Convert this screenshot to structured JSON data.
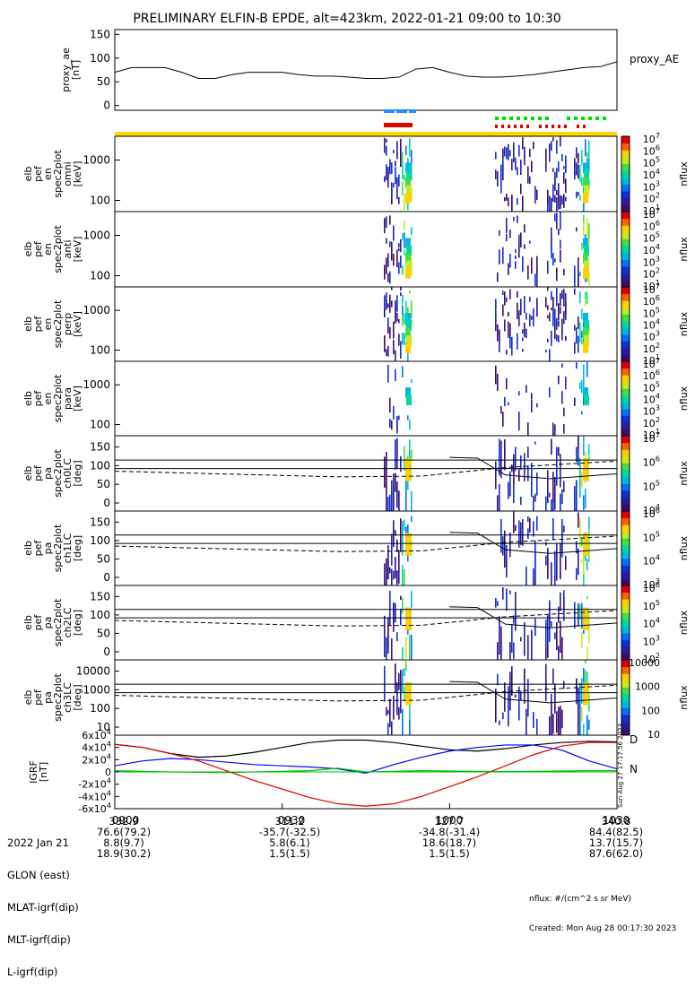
{
  "title": "PRELIMINARY ELFIN-B EPDE, alt=423km, 2022-01-21 09:00 to 10:30",
  "chart_data": [
    {
      "type": "line",
      "panel": "proxy_ae",
      "ylabel_lines": [
        "proxy_ae",
        "[nT]"
      ],
      "legend": "proxy_AE",
      "yticks": [
        "0",
        "50",
        "100",
        "150"
      ],
      "ylim": [
        -10,
        160
      ],
      "x_minutes": [
        0,
        3,
        6,
        9,
        12,
        15,
        18,
        21,
        24,
        27,
        30,
        33,
        36,
        39,
        42,
        45,
        48,
        51,
        54,
        57,
        60,
        63,
        66,
        69,
        72,
        75,
        78,
        81,
        84,
        87,
        90
      ],
      "values": [
        70,
        80,
        80,
        80,
        70,
        57,
        57,
        65,
        70,
        70,
        70,
        65,
        62,
        62,
        60,
        57,
        57,
        60,
        77,
        80,
        70,
        62,
        60,
        60,
        62,
        65,
        70,
        75,
        80,
        82,
        92
      ]
    },
    {
      "type": "heatmap",
      "panel": "omni",
      "ylabel_lines": [
        "elb",
        "pef",
        "en",
        "spec2plot",
        "omni",
        "[keV]"
      ],
      "yticks": [
        "100",
        "1000"
      ],
      "zlabel": "nflux",
      "zticks": [
        "10^1",
        "10^2",
        "10^3",
        "10^4",
        "10^5",
        "10^6",
        "10^7"
      ]
    },
    {
      "type": "heatmap",
      "panel": "anti",
      "ylabel_lines": [
        "elb",
        "pef",
        "en",
        "spec2plot",
        "anti",
        "[keV]"
      ],
      "yticks": [
        "100",
        "1000"
      ],
      "zlabel": "nflux",
      "zticks": [
        "10^1",
        "10^2",
        "10^3",
        "10^4",
        "10^5",
        "10^6",
        "10^7"
      ]
    },
    {
      "type": "heatmap",
      "panel": "perp",
      "ylabel_lines": [
        "elb",
        "pef",
        "en",
        "spec2plot",
        "perp",
        "[keV]"
      ],
      "yticks": [
        "100",
        "1000"
      ],
      "zlabel": "nflux",
      "zticks": [
        "10^1",
        "10^2",
        "10^3",
        "10^4",
        "10^5",
        "10^6",
        "10^7"
      ]
    },
    {
      "type": "heatmap",
      "panel": "para",
      "ylabel_lines": [
        "elb",
        "pef",
        "en",
        "spec2plot",
        "para",
        "[keV]"
      ],
      "yticks": [
        "100",
        "1000"
      ],
      "zlabel": "nflux",
      "zticks": [
        "10^1",
        "10^2",
        "10^3",
        "10^4",
        "10^5",
        "10^6",
        "10^7"
      ]
    },
    {
      "type": "heatmap",
      "panel": "ch0LC",
      "ylabel_lines": [
        "elb",
        "pef",
        "pa",
        "spec2plot",
        "ch0LC",
        "[deg]"
      ],
      "yticks": [
        "0",
        "50",
        "100",
        "150"
      ],
      "zlabel": "nflux",
      "zticks": [
        "10^4",
        "10^5",
        "10^6",
        "10^7"
      ]
    },
    {
      "type": "heatmap",
      "panel": "ch1LC",
      "ylabel_lines": [
        "elb",
        "pef",
        "pa",
        "spec2plot",
        "ch1LC",
        "[deg]"
      ],
      "yticks": [
        "0",
        "50",
        "100",
        "150"
      ],
      "zlabel": "nflux",
      "zticks": [
        "10^3",
        "10^4",
        "10^5",
        "10^6"
      ]
    },
    {
      "type": "heatmap",
      "panel": "ch2LC",
      "ylabel_lines": [
        "elb",
        "pef",
        "pa",
        "spec2plot",
        "ch2LC",
        "[deg]"
      ],
      "yticks": [
        "0",
        "50",
        "100",
        "150"
      ],
      "zlabel": "nflux",
      "zticks": [
        "10^2",
        "10^3",
        "10^4",
        "10^5",
        "10^6"
      ]
    },
    {
      "type": "heatmap",
      "panel": "ch3LC",
      "ylabel_lines": [
        "elb",
        "pef",
        "pa",
        "spec2plot",
        "ch3LC",
        "[deg]"
      ],
      "yticks": [
        "10",
        "100",
        "1000",
        "10000"
      ],
      "zlabel": "nflux",
      "zticks": [
        "10",
        "100",
        "1000",
        "10000"
      ]
    },
    {
      "type": "line",
      "panel": "igrf",
      "ylabel_lines": [
        "IGRF",
        "[nT]"
      ],
      "yticks": [
        "-6x10^4",
        "-4x10^4",
        "-2x10^4",
        "0",
        "2x10^4",
        "4x10^4",
        "6x10^4"
      ],
      "ylim": [
        -60000,
        60000
      ],
      "x_minutes": [
        0,
        5,
        10,
        15,
        20,
        25,
        30,
        35,
        40,
        45,
        50,
        55,
        60,
        65,
        70,
        75,
        80,
        85,
        90
      ],
      "series": [
        {
          "name": "D",
          "color": "#000000",
          "values": [
            45000,
            40000,
            30000,
            24000,
            26000,
            32000,
            40000,
            48000,
            52000,
            52000,
            48000,
            42000,
            36000,
            34000,
            38000,
            44000,
            48000,
            50000,
            49000
          ]
        },
        {
          "name": "",
          "color": "#0000ff",
          "values": [
            10000,
            18000,
            22000,
            20000,
            16000,
            12000,
            10000,
            8000,
            5000,
            -2000,
            12000,
            24000,
            34000,
            40000,
            44000,
            44000,
            36000,
            18000,
            5000
          ]
        },
        {
          "name": "N",
          "color": "#00c000",
          "values": [
            2000,
            1000,
            0,
            -500,
            -1000,
            0,
            1000,
            2000,
            6000,
            0,
            1000,
            2000,
            1500,
            1000,
            500,
            1000,
            1500,
            2000,
            2000
          ]
        },
        {
          "name": "",
          "color": "#e00000",
          "values": [
            45000,
            40000,
            30000,
            18000,
            2000,
            -14000,
            -28000,
            -42000,
            -52000,
            -56000,
            -52000,
            -40000,
            -24000,
            -8000,
            10000,
            28000,
            42000,
            48000,
            48000
          ]
        }
      ]
    }
  ],
  "igrf_labels": {
    "d": "D",
    "n": "N"
  },
  "side_stamp": "Sun Aug 27 17:17:56 2023",
  "time_ticks": [
    "0900",
    "0930",
    "1000",
    "1030"
  ],
  "footer": {
    "left_col": [
      "2022 Jan 21",
      "GLON (east)",
      "MLAT-igrf(dip)",
      "MLT-igrf(dip)",
      "L-igrf(dip)"
    ],
    "cols": [
      {
        "v": [
          "",
          "332.9",
          "76.6(79.2)",
          "8.8(9.7)",
          "18.9(30.2)"
        ]
      },
      {
        "v": [
          "",
          "311.2",
          "-35.7(-32.5)",
          "5.8(6.1)",
          "1.5(1.5)"
        ]
      },
      {
        "v": [
          "",
          "127.7",
          "-34.8(-31.4)",
          "18.6(18.7)",
          "1.5(1.5)"
        ]
      },
      {
        "v": [
          "",
          "340.8",
          "84.4(82.5)",
          "13.7(15.7)",
          "87.6(62.0)"
        ]
      }
    ],
    "units": "nflux: #/(cm^2 s sr MeV)",
    "created": "Created: Mon Aug 28 00:17:30 2023"
  },
  "colors": {
    "yellow_bar": "#ffd700",
    "red_mark": "#e00000",
    "blue_mark": "#1e90ff",
    "green_mark": "#00e000"
  }
}
